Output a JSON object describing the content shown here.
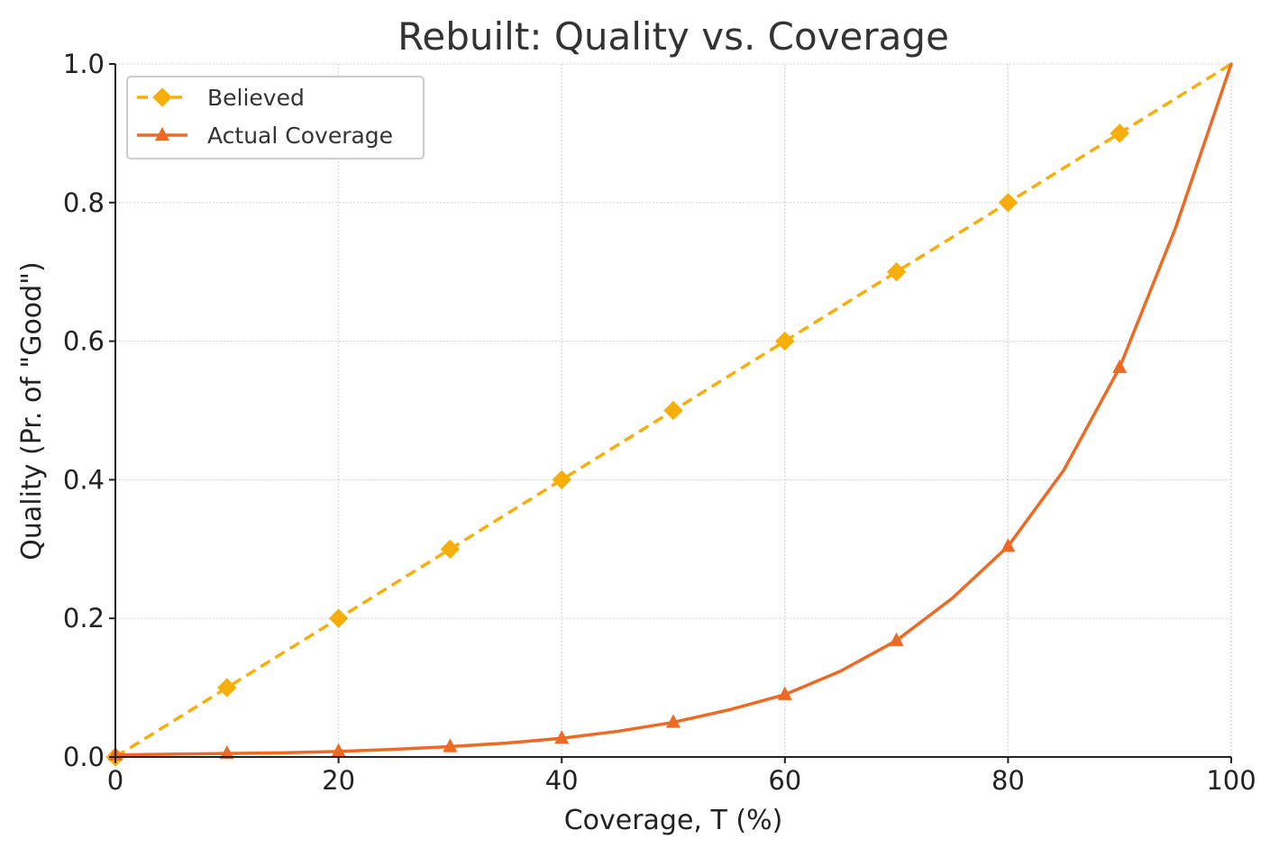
{
  "chart_data": {
    "type": "line",
    "title": "Rebuilt: Quality vs. Coverage",
    "xlabel": "Coverage, T (%)",
    "ylabel": "Quality (Pr. of \"Good\")",
    "xlim": [
      0,
      100
    ],
    "ylim": [
      0,
      1.0
    ],
    "x_ticks": [
      0,
      20,
      40,
      60,
      80,
      100
    ],
    "x_tick_labels": [
      "0",
      "20",
      "40",
      "60",
      "80",
      "100"
    ],
    "y_ticks": [
      0,
      0.2,
      0.4,
      0.6,
      0.8,
      1.0
    ],
    "y_tick_labels": [
      "0.0",
      "0.2",
      "0.4",
      "0.6",
      "0.8",
      "1.0"
    ],
    "grid": true,
    "legend_position": "top-left",
    "series": [
      {
        "name": "Believed",
        "color": "#F6AE0A",
        "line_style": "dashed",
        "marker": "diamond",
        "x": [
          0,
          10,
          20,
          30,
          40,
          50,
          60,
          70,
          80,
          90,
          100
        ],
        "y": [
          0.0,
          0.1,
          0.2,
          0.3,
          0.4,
          0.5,
          0.6,
          0.7,
          0.8,
          0.9,
          1.0
        ],
        "marker_x": [
          0,
          10,
          20,
          30,
          40,
          50,
          60,
          70,
          80,
          90
        ],
        "marker_y": [
          0.0,
          0.1,
          0.2,
          0.3,
          0.4,
          0.5,
          0.6,
          0.7,
          0.8,
          0.9
        ]
      },
      {
        "name": "Actual Coverage",
        "color": "#EC6A24",
        "line_style": "solid",
        "marker": "triangle",
        "x": [
          0,
          5,
          10,
          15,
          20,
          25,
          30,
          35,
          40,
          45,
          50,
          55,
          60,
          65,
          70,
          75,
          80,
          85,
          90,
          95,
          100
        ],
        "y": [
          0.003,
          0.004,
          0.005,
          0.006,
          0.008,
          0.011,
          0.015,
          0.02,
          0.027,
          0.037,
          0.05,
          0.068,
          0.09,
          0.124,
          0.168,
          0.229,
          0.304,
          0.414,
          0.562,
          0.763,
          1.0
        ],
        "marker_x": [
          0,
          10,
          20,
          30,
          40,
          50,
          60,
          70,
          80,
          90
        ],
        "marker_y": [
          0.003,
          0.005,
          0.008,
          0.015,
          0.027,
          0.05,
          0.09,
          0.168,
          0.304,
          0.562
        ]
      }
    ]
  }
}
